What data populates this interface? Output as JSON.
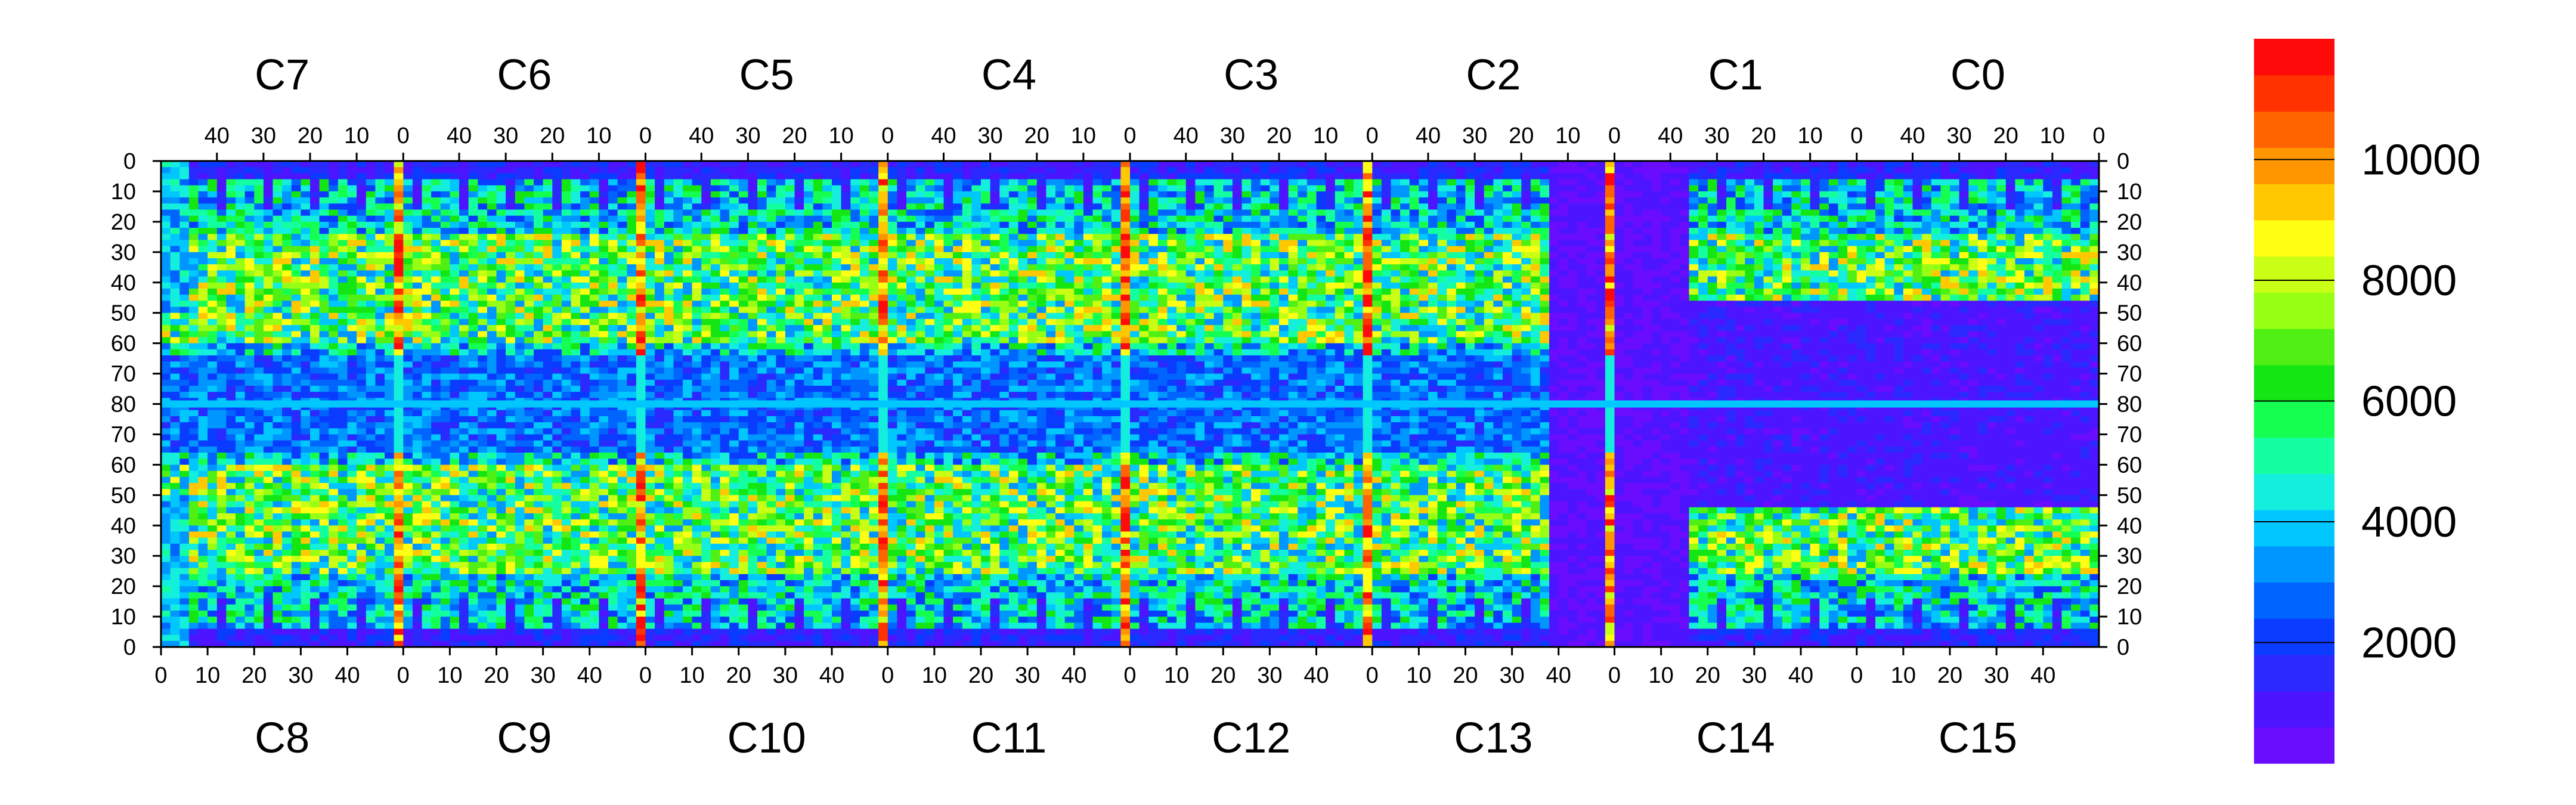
{
  "chart_data": {
    "type": "heatmap",
    "title": "",
    "xlabel": "",
    "ylabel": "",
    "top_chips": [
      "C7",
      "C6",
      "C5",
      "C4",
      "C3",
      "C2",
      "C1",
      "C0"
    ],
    "bottom_chips": [
      "C8",
      "C9",
      "C10",
      "C11",
      "C12",
      "C13",
      "C14",
      "C15"
    ],
    "chip_columns": 52,
    "rows_per_half": 80,
    "top_x_ticks": [
      "40",
      "30",
      "20",
      "10",
      "0"
    ],
    "bottom_x_ticks": [
      "0",
      "10",
      "20",
      "30",
      "40"
    ],
    "y_ticks_top_half": [
      "0",
      "10",
      "20",
      "30",
      "40",
      "50",
      "60",
      "70"
    ],
    "y_tick_middle": "80",
    "y_ticks_bottom_half": [
      "70",
      "60",
      "50",
      "40",
      "30",
      "20",
      "10",
      "0"
    ],
    "zlim": [
      0,
      12000
    ],
    "colorbar_ticks": [
      "2000",
      "4000",
      "6000",
      "8000",
      "10000"
    ],
    "colormap": [
      "#6a0dff",
      "#4d14ff",
      "#2a2aff",
      "#0a3cff",
      "#0064ff",
      "#0096ff",
      "#00c8ff",
      "#14eedd",
      "#14ff9f",
      "#14ff50",
      "#14e614",
      "#50f014",
      "#96ff14",
      "#c8ff14",
      "#ffff14",
      "#ffc800",
      "#ff9600",
      "#ff6400",
      "#ff3200",
      "#ff0a0a"
    ],
    "regions": {
      "hot_columns_percent_range": [
        6000,
        12000
      ],
      "low_block_value": 500,
      "noisy_field_value": 5000
    }
  }
}
